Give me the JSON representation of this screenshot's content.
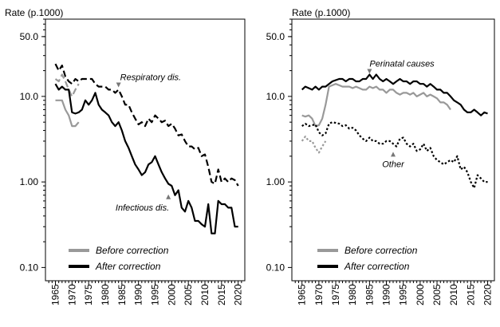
{
  "chart_data": [
    {
      "type": "line",
      "ylabel": "Rate (p.1000)",
      "yscale": "log",
      "ylim": [
        0.07,
        80
      ],
      "xlim": [
        1962,
        2022
      ],
      "yticks": [
        "50.0",
        "10.0",
        "1.00",
        "0.10"
      ],
      "ytick_values": [
        50,
        10,
        1,
        0.1
      ],
      "xticks": [
        "1965",
        "1970",
        "1975",
        "1980",
        "1985",
        "1990",
        "1995",
        "2000",
        "2005",
        "2010",
        "2015",
        "2020"
      ],
      "xtick_values": [
        1965,
        1970,
        1975,
        1980,
        1985,
        1990,
        1995,
        2000,
        2005,
        2010,
        2015,
        2020
      ],
      "legend": {
        "position": "bottom-left",
        "entries": [
          {
            "label": "Before correction",
            "color": "#999999"
          },
          {
            "label": "After correction",
            "color": "#000000"
          }
        ]
      },
      "annotations": [
        {
          "text": "Respiratory dis.",
          "x": 1984,
          "y": 12.5
        },
        {
          "text": "Infectious dis.",
          "x": 1999,
          "y": 0.73
        }
      ],
      "series": [
        {
          "group": "Respiratory dis.",
          "correction": "after",
          "color": "#000000",
          "dash": "dashed",
          "x": [
            1965,
            1966,
            1967,
            1968,
            1969,
            1970,
            1971,
            1972,
            1973,
            1974,
            1975,
            1976,
            1977,
            1978,
            1979,
            1980,
            1981,
            1982,
            1983,
            1984,
            1985,
            1986,
            1987,
            1988,
            1989,
            1990,
            1991,
            1992,
            1993,
            1994,
            1995,
            1996,
            1997,
            1998,
            1999,
            2000,
            2001,
            2002,
            2003,
            2004,
            2005,
            2006,
            2007,
            2008,
            2009,
            2010,
            2011,
            2012,
            2013,
            2014,
            2015,
            2016,
            2017,
            2018,
            2019,
            2020
          ],
          "y": [
            24,
            20,
            23,
            17,
            15,
            14,
            16,
            15,
            16,
            16,
            16,
            16,
            14,
            13,
            13,
            13,
            12,
            12,
            11,
            12,
            10,
            8,
            8,
            6.5,
            5.5,
            4.7,
            5,
            4.5,
            5.5,
            5,
            6,
            5.5,
            5,
            5.2,
            4.5,
            4.8,
            4.2,
            3.5,
            3.6,
            3,
            2.6,
            2.6,
            2.4,
            2.5,
            2,
            2.1,
            1.5,
            1,
            0.95,
            1.4,
            1,
            1.1,
            1,
            1.1,
            1.05,
            0.9
          ]
        },
        {
          "group": "Respiratory dis.",
          "correction": "before",
          "color": "#999999",
          "dash": "dashed",
          "x": [
            1965,
            1966,
            1967,
            1968,
            1969,
            1970,
            1971,
            1972
          ],
          "y": [
            16,
            15,
            18,
            15,
            12,
            10,
            12,
            14
          ]
        },
        {
          "group": "Infectious dis.",
          "correction": "after",
          "color": "#000000",
          "dash": "solid",
          "x": [
            1965,
            1966,
            1967,
            1968,
            1969,
            1970,
            1971,
            1972,
            1973,
            1974,
            1975,
            1976,
            1977,
            1978,
            1979,
            1980,
            1981,
            1982,
            1983,
            1984,
            1985,
            1986,
            1987,
            1988,
            1989,
            1990,
            1991,
            1992,
            1993,
            1994,
            1995,
            1996,
            1997,
            1998,
            1999,
            2000,
            2001,
            2002,
            2003,
            2004,
            2005,
            2006,
            2007,
            2008,
            2009,
            2010,
            2011,
            2012,
            2013,
            2014,
            2015,
            2016,
            2017,
            2018,
            2019,
            2020
          ],
          "y": [
            14,
            12,
            13,
            12,
            12,
            6.5,
            6.3,
            6.5,
            7,
            9,
            8,
            9,
            11,
            8,
            7,
            6.5,
            6,
            5,
            4.5,
            5,
            4,
            3,
            2.5,
            2,
            1.6,
            1.4,
            1.2,
            1.3,
            1.6,
            1.7,
            2,
            1.6,
            1.3,
            1.1,
            0.95,
            0.9,
            0.7,
            0.8,
            0.5,
            0.45,
            0.6,
            0.5,
            0.35,
            0.35,
            0.32,
            0.3,
            0.55,
            0.25,
            0.25,
            0.6,
            0.55,
            0.55,
            0.5,
            0.5,
            0.3,
            0.3
          ]
        },
        {
          "group": "Infectious dis.",
          "correction": "before",
          "color": "#999999",
          "dash": "solid",
          "x": [
            1965,
            1966,
            1967,
            1968,
            1969,
            1970,
            1971,
            1972
          ],
          "y": [
            9,
            9,
            9,
            7,
            6,
            4.5,
            4.5,
            5
          ]
        }
      ]
    },
    {
      "type": "line",
      "ylabel": "Rate (p.1000)",
      "yscale": "log",
      "ylim": [
        0.07,
        80
      ],
      "xlim": [
        1962,
        2022
      ],
      "yticks": [
        "50.0",
        "10.0",
        "1.00",
        "0.10"
      ],
      "ytick_values": [
        50,
        10,
        1,
        0.1
      ],
      "xticks": [
        "1965",
        "1970",
        "1975",
        "1980",
        "1985",
        "1990",
        "1995",
        "2000",
        "2005",
        "2010",
        "2015",
        "2020"
      ],
      "xtick_values": [
        1965,
        1970,
        1975,
        1980,
        1985,
        1990,
        1995,
        2000,
        2005,
        2010,
        2015,
        2020
      ],
      "legend": {
        "position": "bottom-right",
        "entries": [
          {
            "label": "Before correction",
            "color": "#999999"
          },
          {
            "label": "After correction",
            "color": "#000000"
          }
        ]
      },
      "annotations": [
        {
          "text": "Perinatal causes",
          "x": 1985,
          "y": 18
        },
        {
          "text": "Other",
          "x": 1992,
          "y": 2.3
        }
      ],
      "series": [
        {
          "group": "Perinatal causes",
          "correction": "after",
          "color": "#000000",
          "dash": "solid",
          "x": [
            1965,
            1966,
            1967,
            1968,
            1969,
            1970,
            1971,
            1972,
            1973,
            1974,
            1975,
            1976,
            1977,
            1978,
            1979,
            1980,
            1981,
            1982,
            1983,
            1984,
            1985,
            1986,
            1987,
            1988,
            1989,
            1990,
            1991,
            1992,
            1993,
            1994,
            1995,
            1996,
            1997,
            1998,
            1999,
            2000,
            2001,
            2002,
            2003,
            2004,
            2005,
            2006,
            2007,
            2008,
            2009,
            2010,
            2011,
            2012,
            2013,
            2014,
            2015,
            2016,
            2017,
            2018,
            2019,
            2020
          ],
          "y": [
            12,
            13,
            12.5,
            12,
            13,
            12,
            13,
            13,
            14,
            15,
            15.5,
            16,
            16,
            15,
            16,
            16,
            15,
            15,
            16,
            16,
            18,
            16,
            18,
            16,
            15,
            16,
            15,
            14,
            15,
            16,
            15,
            15,
            14,
            15,
            15,
            14,
            14,
            13,
            14,
            13,
            12,
            12,
            11,
            11,
            10,
            9,
            8.5,
            8,
            7,
            6.5,
            6.5,
            7,
            6.5,
            6,
            6.5,
            6.3
          ]
        },
        {
          "group": "Perinatal causes",
          "correction": "before",
          "color": "#999999",
          "dash": "solid",
          "x": [
            1965,
            1966,
            1967,
            1968,
            1969,
            1970,
            1971,
            1972,
            1973,
            1974,
            1975,
            1976,
            1977,
            1978,
            1979,
            1980,
            1981,
            1982,
            1983,
            1984,
            1985,
            1986,
            1987,
            1988,
            1989,
            1990,
            1991,
            1992,
            1993,
            1994,
            1995,
            1996,
            1997,
            1998,
            1999,
            2000,
            2001,
            2002,
            2003,
            2004,
            2005,
            2006,
            2007,
            2008,
            2009
          ],
          "y": [
            6,
            5.8,
            6,
            5.5,
            4.5,
            4.6,
            5.5,
            8,
            13,
            13.5,
            14,
            13.5,
            13,
            13,
            13,
            12.5,
            13,
            12.5,
            12,
            12,
            13,
            12.5,
            13,
            12,
            12,
            11,
            12,
            12,
            11,
            10.5,
            11,
            11,
            10.5,
            11,
            10,
            10.5,
            11,
            10,
            10.5,
            10,
            9.5,
            8.5,
            8.5,
            8,
            7
          ]
        },
        {
          "group": "Other",
          "correction": "after",
          "color": "#000000",
          "dash": "dotted",
          "x": [
            1965,
            1966,
            1967,
            1968,
            1969,
            1970,
            1971,
            1972,
            1973,
            1974,
            1975,
            1976,
            1977,
            1978,
            1979,
            1980,
            1981,
            1982,
            1983,
            1984,
            1985,
            1986,
            1987,
            1988,
            1989,
            1990,
            1991,
            1992,
            1993,
            1994,
            1995,
            1996,
            1997,
            1998,
            1999,
            2000,
            2001,
            2002,
            2003,
            2004,
            2005,
            2006,
            2007,
            2008,
            2009,
            2010,
            2011,
            2012,
            2013,
            2014,
            2015,
            2016,
            2017,
            2018,
            2019,
            2020
          ],
          "y": [
            4.5,
            4.8,
            4.5,
            4.6,
            4.7,
            3.8,
            3.5,
            3.7,
            4.8,
            5,
            4.9,
            4.8,
            4.5,
            4.6,
            4.2,
            4.3,
            4,
            3.5,
            3.2,
            3,
            3.3,
            3,
            3,
            2.8,
            2.8,
            3,
            3,
            2.8,
            2.6,
            3.2,
            3.3,
            2.8,
            2.6,
            2.8,
            2.3,
            2.4,
            2.8,
            2.3,
            2.5,
            2,
            1.8,
            1.7,
            1.6,
            1.7,
            1.8,
            1.7,
            2,
            1.4,
            1.5,
            1.3,
            1,
            0.85,
            1.2,
            1.1,
            1,
            1.0
          ]
        },
        {
          "group": "Other",
          "correction": "before",
          "color": "#999999",
          "dash": "dotted",
          "x": [
            1965,
            1966,
            1967,
            1968,
            1969,
            1970,
            1971,
            1972
          ],
          "y": [
            3,
            3.4,
            3,
            3,
            2.5,
            2.2,
            2.6,
            3
          ]
        }
      ]
    }
  ]
}
